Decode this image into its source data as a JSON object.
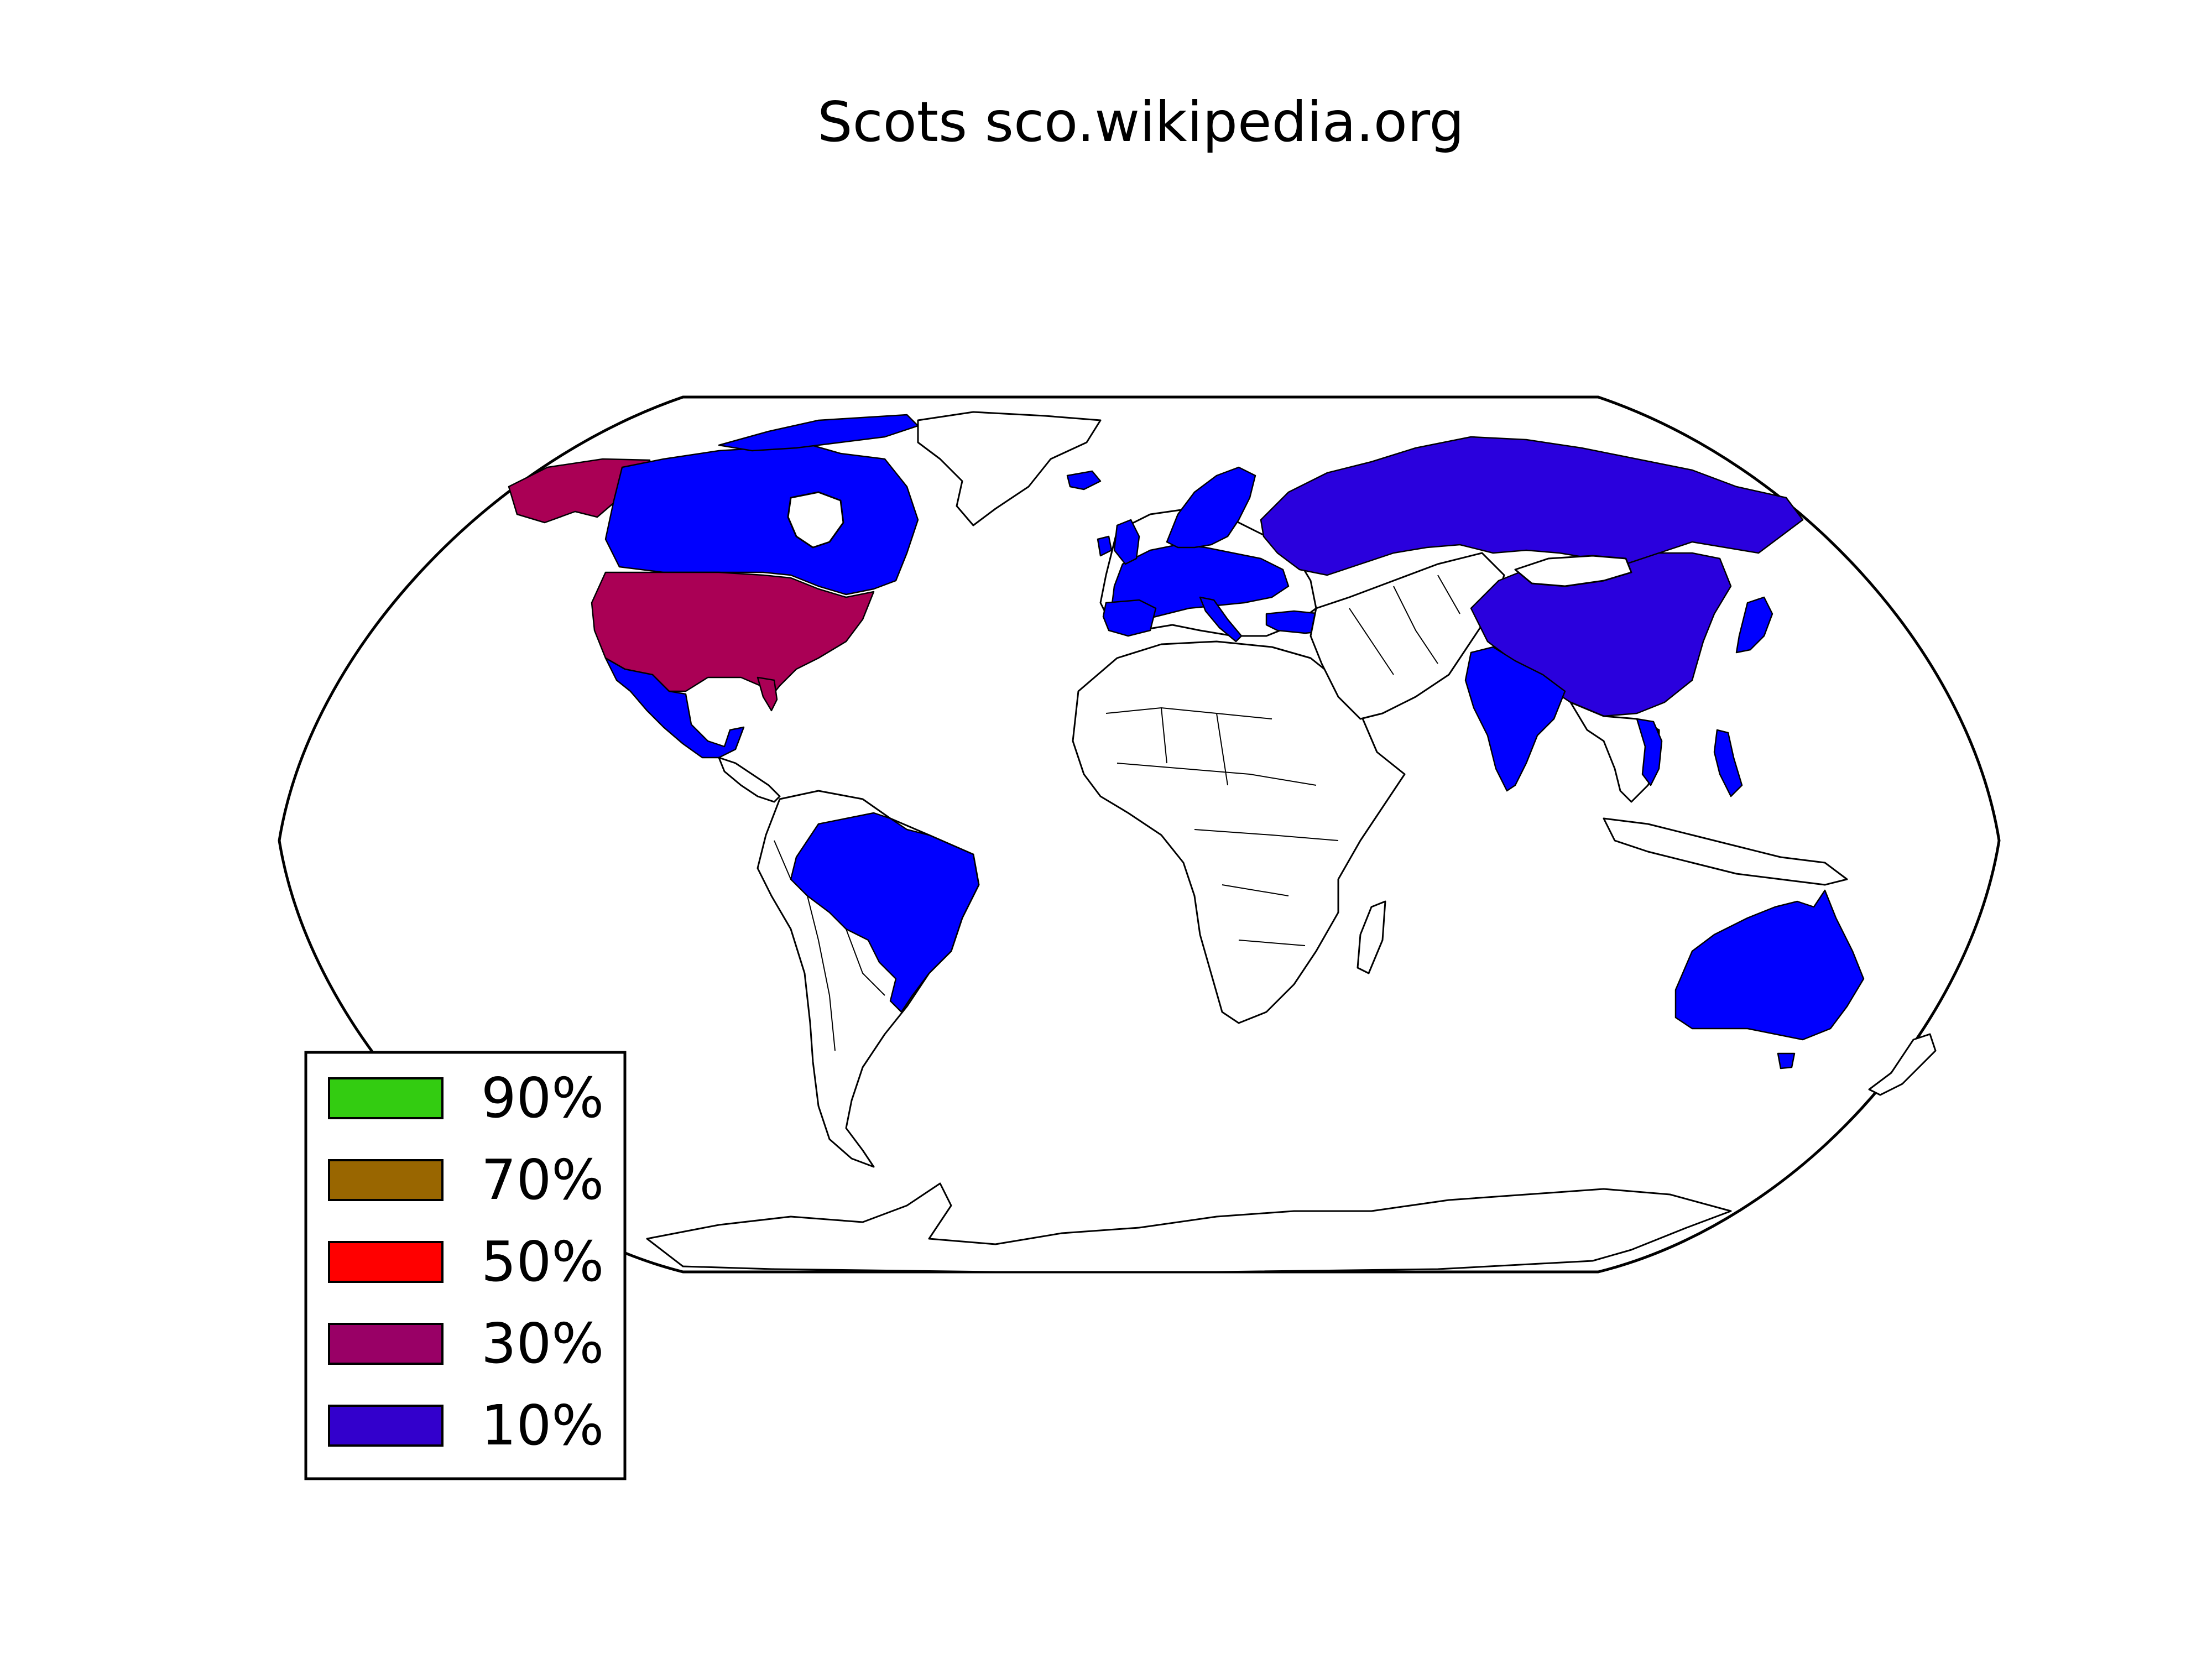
{
  "title": "Scots sco.wikipedia.org",
  "legend": {
    "placement": "lower-left",
    "items": [
      {
        "label": "90%",
        "color": "#33cc11"
      },
      {
        "label": "70%",
        "color": "#996600"
      },
      {
        "label": "50%",
        "color": "#ff0000"
      },
      {
        "label": "30%",
        "color": "#990066"
      },
      {
        "label": "10%",
        "color": "#3300cc"
      }
    ]
  },
  "colors": {
    "share_30": "#aa0055",
    "share_10": "#2a00dd",
    "share_10_bright": "#0000ff",
    "land": "#ffffff",
    "border": "#000000"
  },
  "regions": [
    {
      "name": "Alaska",
      "bin": "30%"
    },
    {
      "name": "United States",
      "bin": "30%"
    },
    {
      "name": "Canada",
      "bin": "10%"
    },
    {
      "name": "Mexico",
      "bin": "10%"
    },
    {
      "name": "Brazil",
      "bin": "10%"
    },
    {
      "name": "Western Europe",
      "bin": "10%"
    },
    {
      "name": "Scandinavia",
      "bin": "10%"
    },
    {
      "name": "Turkey",
      "bin": "10%"
    },
    {
      "name": "Russia",
      "bin": "10%"
    },
    {
      "name": "China",
      "bin": "10%"
    },
    {
      "name": "India",
      "bin": "10%"
    },
    {
      "name": "Japan",
      "bin": "10%"
    },
    {
      "name": "Philippines",
      "bin": "10%"
    },
    {
      "name": "Vietnam",
      "bin": "10%"
    },
    {
      "name": "Australia",
      "bin": "10%"
    }
  ],
  "projection": "robinson"
}
